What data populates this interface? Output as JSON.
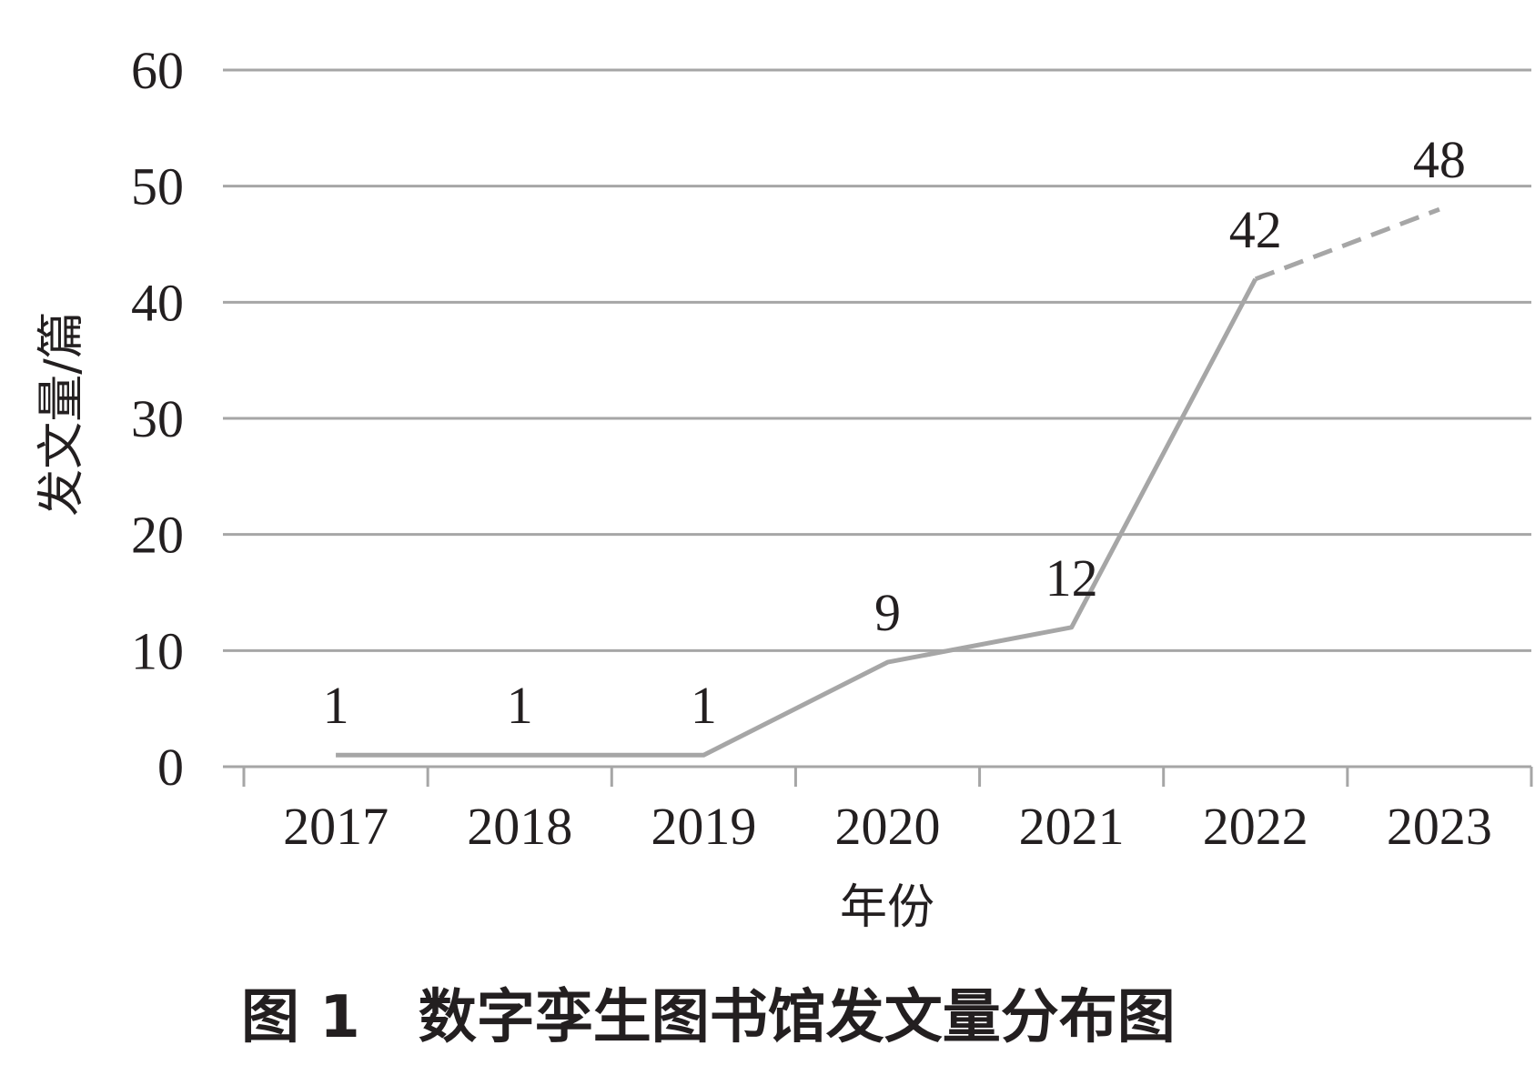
{
  "chart_data": {
    "type": "line",
    "categories": [
      "2017",
      "2018",
      "2019",
      "2020",
      "2021",
      "2022",
      "2023"
    ],
    "series": [
      {
        "values": [
          1,
          1,
          1,
          9,
          12,
          42,
          48
        ],
        "dashed_from_index": 5
      }
    ],
    "data_labels": [
      "1",
      "1",
      "1",
      "9",
      "12",
      "42",
      "48"
    ],
    "xlabel": "年份",
    "ylabel": "发文量/篇",
    "ylim": [
      0,
      60
    ],
    "yticks": [
      0,
      10,
      20,
      30,
      40,
      50,
      60
    ],
    "grid": true,
    "legend": "none",
    "colors": {
      "line": "#a6a6a6",
      "grid": "#a6a6a6",
      "text": "#231f20"
    }
  },
  "caption": "图 1　数字孪生图书馆发文量分布图"
}
